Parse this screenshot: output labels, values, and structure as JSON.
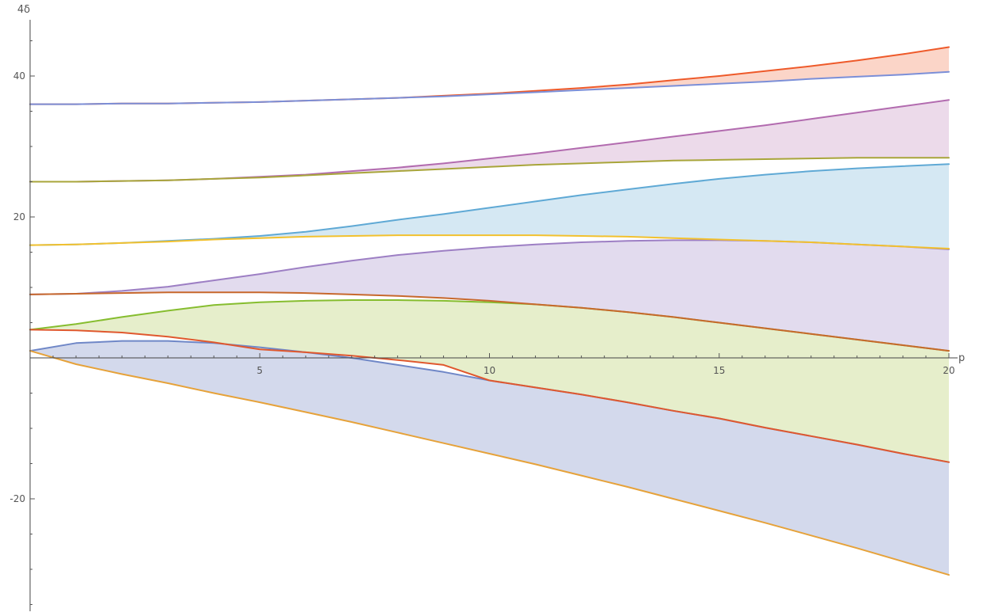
{
  "chart_data": {
    "type": "area",
    "xlabel": "p",
    "ylabel": "4δ",
    "xlim": [
      0,
      20
    ],
    "ylim": [
      -35,
      48
    ],
    "grid": false,
    "legend": "none",
    "x_ticks": [
      5,
      10,
      15,
      20
    ],
    "y_ticks": [
      -20,
      20,
      40
    ],
    "bands": [
      {
        "fill": "#d3d9ec",
        "upper": {
          "color": "#6f87c7",
          "x": [
            0,
            1,
            2,
            3,
            4,
            5,
            6,
            7,
            8,
            9,
            10,
            11,
            12,
            13,
            14,
            15,
            16,
            17,
            18,
            19,
            20
          ],
          "y": [
            1,
            2.1,
            2.4,
            2.4,
            2.1,
            1.5,
            0.8,
            0,
            -1,
            -2,
            -3.2,
            -4.2,
            -5.2,
            -6.3,
            -7.5,
            -8.6,
            -9.9,
            -11.1,
            -12.3,
            -13.6,
            -14.8
          ]
        },
        "lower": {
          "color": "#e6a23a",
          "x": [
            0,
            1,
            2,
            3,
            4,
            5,
            6,
            7,
            8,
            9,
            10,
            11,
            12,
            13,
            14,
            15,
            16,
            17,
            18,
            19,
            20
          ],
          "y": [
            1,
            -0.9,
            -2.3,
            -3.6,
            -5,
            -6.3,
            -7.7,
            -9.1,
            -10.6,
            -12.1,
            -13.6,
            -15.1,
            -16.7,
            -18.3,
            -20,
            -21.7,
            -23.4,
            -25.2,
            -27,
            -28.9,
            -30.8
          ]
        }
      },
      {
        "fill": "#e6eecb",
        "upper": {
          "color": "#86bd2f",
          "x": [
            0,
            1,
            2,
            3,
            4,
            5,
            6,
            7,
            8,
            9,
            10,
            11,
            12,
            13,
            14,
            15,
            16,
            17,
            18,
            19,
            20
          ],
          "y": [
            4,
            4.8,
            5.8,
            6.7,
            7.5,
            7.9,
            8.1,
            8.2,
            8.2,
            8.1,
            7.9,
            7.6,
            7.1,
            6.5,
            5.8,
            5,
            4.2,
            3.4,
            2.6,
            1.8,
            1
          ]
        },
        "lower": {
          "color": "#e0582e",
          "x": [
            0,
            1,
            2,
            3,
            4,
            5,
            6,
            7,
            8,
            9,
            10,
            11,
            12,
            13,
            14,
            15,
            16,
            17,
            18,
            19,
            20
          ],
          "y": [
            4,
            3.9,
            3.6,
            3,
            2.2,
            1.2,
            0.8,
            0.3,
            -0.3,
            -1,
            -3.2,
            -4.2,
            -5.2,
            -6.3,
            -7.5,
            -8.6,
            -9.9,
            -11.1,
            -12.3,
            -13.6,
            -14.8
          ]
        }
      },
      {
        "fill": "#e2dbee",
        "upper": {
          "color": "#9d7fc4",
          "x": [
            0,
            1,
            2,
            3,
            4,
            5,
            6,
            7,
            8,
            9,
            10,
            11,
            12,
            13,
            14,
            15,
            16,
            17,
            18,
            19,
            20
          ],
          "y": [
            9,
            9.1,
            9.5,
            10.1,
            11,
            11.9,
            12.9,
            13.8,
            14.6,
            15.2,
            15.7,
            16.1,
            16.4,
            16.6,
            16.7,
            16.7,
            16.6,
            16.4,
            16.1,
            15.8,
            15.4
          ]
        },
        "lower": {
          "color": "#c7682c",
          "x": [
            0,
            1,
            2,
            3,
            4,
            5,
            6,
            7,
            8,
            9,
            10,
            11,
            12,
            13,
            14,
            15,
            16,
            17,
            18,
            19,
            20
          ],
          "y": [
            9,
            9.1,
            9.2,
            9.3,
            9.3,
            9.3,
            9.2,
            9,
            8.8,
            8.5,
            8.1,
            7.6,
            7.1,
            6.5,
            5.8,
            5,
            4.2,
            3.4,
            2.6,
            1.8,
            1
          ]
        }
      },
      {
        "fill": "#d5e8f3",
        "upper": {
          "color": "#5fa9d5",
          "x": [
            0,
            1,
            2,
            3,
            4,
            5,
            6,
            7,
            8,
            9,
            10,
            11,
            12,
            13,
            14,
            15,
            16,
            17,
            18,
            19,
            20
          ],
          "y": [
            16,
            16.1,
            16.3,
            16.6,
            16.9,
            17.3,
            17.9,
            18.7,
            19.6,
            20.4,
            21.3,
            22.2,
            23.1,
            23.9,
            24.7,
            25.4,
            26,
            26.5,
            26.9,
            27.2,
            27.5
          ]
        },
        "lower": {
          "color": "#f2c12e",
          "x": [
            0,
            1,
            2,
            3,
            4,
            5,
            6,
            7,
            8,
            9,
            10,
            11,
            12,
            13,
            14,
            15,
            16,
            17,
            18,
            19,
            20
          ],
          "y": [
            16,
            16.1,
            16.3,
            16.5,
            16.8,
            17,
            17.2,
            17.3,
            17.4,
            17.4,
            17.4,
            17.4,
            17.3,
            17.2,
            17,
            16.8,
            16.6,
            16.4,
            16.1,
            15.8,
            15.5
          ]
        }
      },
      {
        "fill": "#ecdaea",
        "upper": {
          "color": "#b26baf",
          "x": [
            0,
            1,
            2,
            3,
            4,
            5,
            6,
            7,
            8,
            9,
            10,
            11,
            12,
            13,
            14,
            15,
            16,
            17,
            18,
            19,
            20
          ],
          "y": [
            25,
            25,
            25.1,
            25.2,
            25.4,
            25.7,
            26,
            26.5,
            27,
            27.6,
            28.3,
            29,
            29.8,
            30.6,
            31.4,
            32.2,
            33,
            33.9,
            34.8,
            35.7,
            36.6
          ]
        },
        "lower": {
          "color": "#a8a53a",
          "x": [
            0,
            1,
            2,
            3,
            4,
            5,
            6,
            7,
            8,
            9,
            10,
            11,
            12,
            13,
            14,
            15,
            16,
            17,
            18,
            19,
            20
          ],
          "y": [
            25,
            25,
            25.1,
            25.2,
            25.4,
            25.6,
            25.9,
            26.2,
            26.5,
            26.8,
            27.1,
            27.4,
            27.6,
            27.8,
            28,
            28.1,
            28.2,
            28.3,
            28.4,
            28.4,
            28.4
          ]
        }
      },
      {
        "fill": "#fbd5c8",
        "upper": {
          "color": "#ee5a2a",
          "x": [
            0,
            1,
            2,
            3,
            4,
            5,
            6,
            7,
            8,
            9,
            10,
            11,
            12,
            13,
            14,
            15,
            16,
            17,
            18,
            19,
            20
          ],
          "y": [
            36,
            36,
            36.1,
            36.1,
            36.2,
            36.3,
            36.5,
            36.7,
            36.9,
            37.2,
            37.5,
            37.9,
            38.3,
            38.8,
            39.4,
            40,
            40.7,
            41.4,
            42.2,
            43.1,
            44.1
          ]
        },
        "lower": {
          "color": "#7b8fd8",
          "x": [
            0,
            1,
            2,
            3,
            4,
            5,
            6,
            7,
            8,
            9,
            10,
            11,
            12,
            13,
            14,
            15,
            16,
            17,
            18,
            19,
            20
          ],
          "y": [
            36,
            36,
            36.1,
            36.1,
            36.2,
            36.3,
            36.5,
            36.7,
            36.9,
            37.1,
            37.4,
            37.7,
            38,
            38.3,
            38.6,
            38.9,
            39.2,
            39.6,
            39.9,
            40.2,
            40.6
          ]
        }
      }
    ]
  }
}
